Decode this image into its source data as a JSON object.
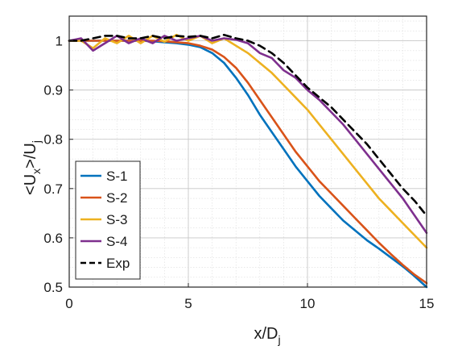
{
  "chart_data": {
    "type": "line",
    "xlabel": "x/D",
    "xlabel_sub": "j",
    "ylabel": "<U",
    "ylabel_sub1": "x",
    "ylabel_mid": ">/U",
    "ylabel_sub2": "j",
    "xlim": [
      0,
      15
    ],
    "ylim": [
      0.5,
      1.05
    ],
    "xticks": [
      0,
      5,
      10,
      15
    ],
    "xtick_labels": [
      "0",
      "5",
      "10",
      "15"
    ],
    "yticks": [
      0.5,
      0.6,
      0.7,
      0.8,
      0.9,
      1.0
    ],
    "ytick_labels": [
      "0.5",
      "0.6",
      "0.7",
      "0.8",
      "0.9",
      "1"
    ],
    "grid": "major and minor",
    "legend_position": "bottom-left",
    "series": [
      {
        "name": "S-1",
        "color": "#0072BD",
        "style": "solid",
        "x": [
          0,
          0.5,
          1.0,
          1.5,
          2.0,
          2.5,
          3.0,
          3.5,
          4.0,
          4.5,
          5.0,
          5.5,
          6.0,
          6.5,
          7.0,
          7.5,
          8.0,
          8.5,
          9.0,
          9.5,
          10.0,
          10.5,
          11.0,
          11.5,
          12.0,
          12.5,
          13.0,
          13.5,
          14.0,
          14.5,
          15.0
        ],
        "y": [
          1.0,
          1.0,
          1.0,
          1.0,
          1.0,
          1.0,
          1.0,
          0.999,
          0.997,
          0.995,
          0.992,
          0.987,
          0.975,
          0.955,
          0.925,
          0.89,
          0.85,
          0.815,
          0.78,
          0.745,
          0.715,
          0.685,
          0.66,
          0.635,
          0.615,
          0.595,
          0.578,
          0.56,
          0.542,
          0.522,
          0.5
        ]
      },
      {
        "name": "S-2",
        "color": "#D95319",
        "style": "solid",
        "x": [
          0,
          0.5,
          1.0,
          1.5,
          2.0,
          2.5,
          3.0,
          3.5,
          4.0,
          4.5,
          5.0,
          5.5,
          6.0,
          6.5,
          7.0,
          7.5,
          8.0,
          8.5,
          9.0,
          9.5,
          10.0,
          10.5,
          11.0,
          11.5,
          12.0,
          12.5,
          13.0,
          13.5,
          14.0,
          14.5,
          15.0
        ],
        "y": [
          1.0,
          1.0,
          1.0,
          1.0,
          1.0,
          1.0,
          1.0,
          1.0,
          0.999,
          0.997,
          0.995,
          0.99,
          0.982,
          0.967,
          0.945,
          0.915,
          0.88,
          0.845,
          0.81,
          0.775,
          0.745,
          0.715,
          0.69,
          0.665,
          0.64,
          0.615,
          0.59,
          0.567,
          0.545,
          0.525,
          0.508
        ]
      },
      {
        "name": "S-3",
        "color": "#EDB120",
        "style": "solid",
        "x": [
          0,
          0.5,
          1.0,
          1.5,
          2.0,
          2.5,
          3.0,
          3.5,
          4.0,
          4.5,
          5.0,
          5.5,
          6.0,
          6.5,
          7.0,
          7.5,
          8.0,
          8.5,
          9.0,
          9.5,
          10.0,
          10.5,
          11.0,
          11.5,
          12.0,
          12.5,
          13.0,
          13.5,
          14.0,
          14.5,
          15.0
        ],
        "y": [
          1.0,
          1.0,
          0.985,
          1.005,
          0.995,
          1.01,
          0.995,
          1.01,
          0.998,
          1.012,
          1.0,
          1.01,
          0.995,
          1.005,
          0.99,
          0.975,
          0.955,
          0.935,
          0.91,
          0.885,
          0.86,
          0.83,
          0.8,
          0.77,
          0.74,
          0.71,
          0.68,
          0.655,
          0.63,
          0.605,
          0.58
        ]
      },
      {
        "name": "S-4",
        "color": "#7E2F8E",
        "style": "solid",
        "x": [
          0,
          0.5,
          1.0,
          1.5,
          2.0,
          2.5,
          3.0,
          3.5,
          4.0,
          4.5,
          5.0,
          5.5,
          6.0,
          6.5,
          7.0,
          7.5,
          8.0,
          8.5,
          9.0,
          9.5,
          10.0,
          10.5,
          11.0,
          11.5,
          12.0,
          12.5,
          13.0,
          13.5,
          14.0,
          14.5,
          15.0
        ],
        "y": [
          1.0,
          1.005,
          0.98,
          0.995,
          1.01,
          0.995,
          1.005,
          0.995,
          1.01,
          1.0,
          1.005,
          1.01,
          1.0,
          1.005,
          1.002,
          0.995,
          0.975,
          0.965,
          0.94,
          0.925,
          0.9,
          0.88,
          0.855,
          0.83,
          0.8,
          0.77,
          0.74,
          0.71,
          0.68,
          0.645,
          0.61
        ]
      },
      {
        "name": "Exp",
        "color": "#000000",
        "style": "dashed",
        "x": [
          0,
          0.5,
          1.0,
          1.5,
          2.0,
          2.5,
          3.0,
          3.5,
          4.0,
          4.5,
          5.0,
          5.5,
          6.0,
          6.5,
          7.0,
          7.5,
          8.0,
          8.5,
          9.0,
          9.5,
          10.0,
          10.5,
          11.0,
          11.5,
          12.0,
          12.5,
          13.0,
          13.5,
          14.0,
          14.5,
          15.0
        ],
        "y": [
          1.0,
          1.0,
          1.005,
          1.01,
          1.01,
          1.005,
          1.005,
          1.01,
          1.005,
          1.01,
          1.008,
          1.01,
          1.005,
          1.012,
          1.005,
          1.0,
          0.99,
          0.975,
          0.955,
          0.93,
          0.905,
          0.885,
          0.865,
          0.84,
          0.815,
          0.79,
          0.76,
          0.73,
          0.7,
          0.675,
          0.645
        ]
      }
    ]
  }
}
